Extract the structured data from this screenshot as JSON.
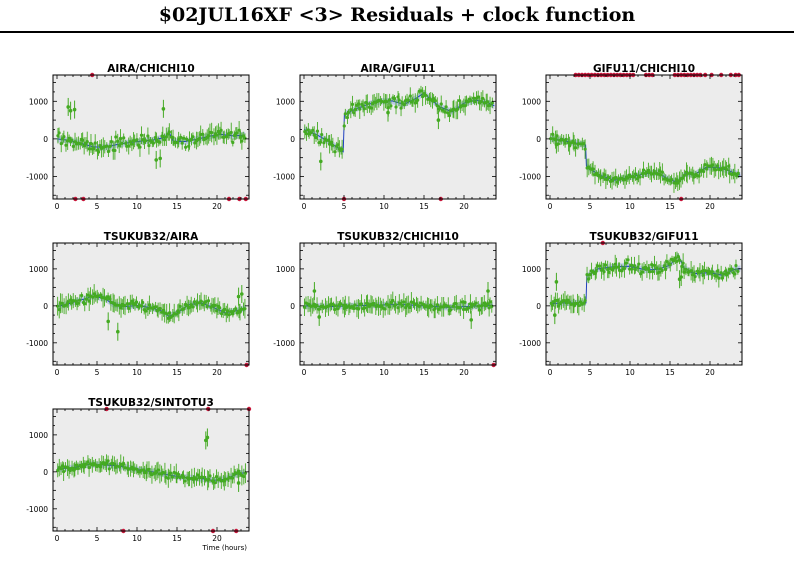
{
  "page": {
    "title": "$02JUL16XF <3> Residuals + clock function"
  },
  "colors": {
    "frame_bg": "#ececec",
    "data_points": "#44aa22",
    "flagged_points": "#c8163a",
    "clock_line": "#1f3fbf",
    "clock_band": "#b8c6e6"
  },
  "chart_data": [
    {
      "type": "scatter",
      "title": "AIRA/CHICHI10",
      "xlim": [
        -0.5,
        24
      ],
      "ylim": [
        -1600,
        1700
      ],
      "x_ticks": [
        0,
        5,
        10,
        15,
        20
      ],
      "y_ticks": [
        -1000,
        0,
        1000
      ],
      "grid": false,
      "clock_function": [
        [
          0,
          0
        ],
        [
          1.5,
          -40
        ],
        [
          3,
          -120
        ],
        [
          4.5,
          -210
        ],
        [
          6,
          -230
        ],
        [
          7.5,
          -150
        ],
        [
          9,
          -100
        ],
        [
          10.5,
          -60
        ],
        [
          12,
          -30
        ],
        [
          13.5,
          40
        ],
        [
          14,
          180
        ],
        [
          14.5,
          -60
        ],
        [
          16,
          -70
        ],
        [
          17.5,
          -10
        ],
        [
          19,
          70
        ],
        [
          20.5,
          120
        ],
        [
          22,
          80
        ],
        [
          23.5,
          100
        ]
      ],
      "scatter_amplitude": 180,
      "outliers": [
        [
          1.4,
          850
        ],
        [
          2.2,
          780
        ],
        [
          1.7,
          750
        ],
        [
          12.4,
          -560
        ],
        [
          12.9,
          -520
        ],
        [
          13.3,
          800
        ]
      ],
      "flagged_top": [
        4.4
      ],
      "flagged_bottom": [
        2.3,
        3.3,
        21.5,
        22.8,
        23.6
      ]
    },
    {
      "type": "scatter",
      "title": "AIRA/GIFU11",
      "xlim": [
        -0.5,
        24
      ],
      "ylim": [
        -1600,
        1700
      ],
      "x_ticks": [
        0,
        5,
        10,
        15,
        20
      ],
      "y_ticks": [
        -1000,
        0,
        1000
      ],
      "grid": false,
      "clock_function": [
        [
          0,
          250
        ],
        [
          1.5,
          120
        ],
        [
          3,
          -60
        ],
        [
          4.9,
          -340
        ],
        [
          5.05,
          650
        ],
        [
          6.5,
          800
        ],
        [
          8,
          920
        ],
        [
          9.5,
          1000
        ],
        [
          11,
          1010
        ],
        [
          12.5,
          920
        ],
        [
          14,
          1080
        ],
        [
          15,
          1220
        ],
        [
          16,
          1020
        ],
        [
          17,
          850
        ],
        [
          18.5,
          720
        ],
        [
          20,
          950
        ],
        [
          21.5,
          1030
        ],
        [
          23,
          960
        ],
        [
          23.8,
          880
        ]
      ],
      "scatter_amplitude": 170,
      "outliers": [
        [
          2.1,
          -600
        ],
        [
          10.5,
          700
        ],
        [
          16.8,
          500
        ]
      ],
      "flagged_top": [],
      "flagged_bottom": [
        5.0,
        17.1
      ]
    },
    {
      "type": "scatter",
      "title": "GIFU11/CHICHI10",
      "xlim": [
        -0.5,
        24
      ],
      "ylim": [
        -1600,
        1700
      ],
      "x_ticks": [
        0,
        5,
        10,
        15,
        20
      ],
      "y_ticks": [
        -1000,
        0,
        1000
      ],
      "grid": false,
      "clock_function": [
        [
          0,
          10
        ],
        [
          2,
          -60
        ],
        [
          4.45,
          -160
        ],
        [
          4.55,
          -720
        ],
        [
          6,
          -950
        ],
        [
          8,
          -1100
        ],
        [
          10,
          -1020
        ],
        [
          12,
          -920
        ],
        [
          13.5,
          -900
        ],
        [
          15,
          -1100
        ],
        [
          16,
          -1140
        ],
        [
          17,
          -920
        ],
        [
          18,
          -960
        ],
        [
          19.5,
          -760
        ],
        [
          21,
          -760
        ],
        [
          22.5,
          -860
        ],
        [
          23.8,
          -970
        ]
      ],
      "scatter_amplitude": 110,
      "outliers": [
        [
          0.8,
          -150
        ]
      ],
      "flagged_top": [
        3.2,
        3.6,
        4.0,
        4.4,
        4.8,
        5.2,
        5.6,
        6.0,
        6.4,
        6.8,
        7.2,
        7.6,
        8.0,
        8.4,
        8.8,
        9.2,
        9.6,
        10.0,
        10.4,
        12.0,
        12.4,
        12.8,
        15.6,
        16.0,
        16.4,
        16.8,
        17.2,
        17.6,
        18.0,
        18.4,
        18.8,
        19.4,
        20.2,
        21.4,
        22.6,
        23.2,
        23.6
      ],
      "flagged_bottom": [
        16.4
      ]
    },
    {
      "type": "scatter",
      "title": "TSUKUB32/AIRA",
      "xlim": [
        -0.5,
        24
      ],
      "ylim": [
        -1600,
        1700
      ],
      "x_ticks": [
        0,
        5,
        10,
        15,
        20
      ],
      "y_ticks": [
        -1000,
        0,
        1000
      ],
      "grid": false,
      "clock_function": [
        [
          0,
          -20
        ],
        [
          1.5,
          60
        ],
        [
          3,
          160
        ],
        [
          4.5,
          260
        ],
        [
          6,
          200
        ],
        [
          7,
          40
        ],
        [
          8.5,
          -20
        ],
        [
          10,
          10
        ],
        [
          11.5,
          -40
        ],
        [
          13,
          -130
        ],
        [
          14,
          -280
        ],
        [
          15,
          -190
        ],
        [
          16.5,
          30
        ],
        [
          18,
          80
        ],
        [
          19.5,
          -40
        ],
        [
          21,
          -190
        ],
        [
          22.5,
          -130
        ],
        [
          23.6,
          -60
        ]
      ],
      "scatter_amplitude": 130,
      "outliers": [
        [
          7.6,
          -700
        ],
        [
          6.4,
          -420
        ],
        [
          22.7,
          250
        ],
        [
          23.1,
          320
        ]
      ],
      "flagged_top": [],
      "flagged_bottom": [
        23.7
      ]
    },
    {
      "type": "scatter",
      "title": "TSUKUB32/CHICHI10",
      "xlim": [
        -0.5,
        24
      ],
      "ylim": [
        -1600,
        1700
      ],
      "x_ticks": [
        0,
        5,
        10,
        15,
        20
      ],
      "y_ticks": [
        -1000,
        0,
        1000
      ],
      "grid": false,
      "clock_function": [
        [
          0,
          0
        ],
        [
          3,
          -20
        ],
        [
          6,
          0
        ],
        [
          9,
          20
        ],
        [
          12,
          40
        ],
        [
          15,
          0
        ],
        [
          18,
          -40
        ],
        [
          21,
          -10
        ],
        [
          23.6,
          20
        ]
      ],
      "scatter_amplitude": 110,
      "outliers": [
        [
          1.3,
          400
        ],
        [
          20.9,
          -380
        ],
        [
          23.0,
          400
        ],
        [
          1.9,
          -300
        ]
      ],
      "flagged_top": [],
      "flagged_bottom": [
        23.7
      ]
    },
    {
      "type": "scatter",
      "title": "TSUKUB32/GIFU11",
      "xlim": [
        -0.5,
        24
      ],
      "ylim": [
        -1600,
        1700
      ],
      "x_ticks": [
        0,
        5,
        10,
        15,
        20
      ],
      "y_ticks": [
        -1000,
        0,
        1000
      ],
      "grid": false,
      "clock_function": [
        [
          0,
          60
        ],
        [
          2,
          80
        ],
        [
          4.5,
          80
        ],
        [
          4.6,
          800
        ],
        [
          6,
          1000
        ],
        [
          8,
          1060
        ],
        [
          10,
          1070
        ],
        [
          12,
          970
        ],
        [
          13.5,
          990
        ],
        [
          15,
          1100
        ],
        [
          16,
          1360
        ],
        [
          16.8,
          1020
        ],
        [
          18,
          870
        ],
        [
          20,
          900
        ],
        [
          21.5,
          830
        ],
        [
          23,
          980
        ],
        [
          23.8,
          1010
        ]
      ],
      "scatter_amplitude": 130,
      "outliers": [
        [
          0.6,
          -250
        ],
        [
          0.8,
          650
        ],
        [
          16.2,
          720
        ],
        [
          16.4,
          780
        ]
      ],
      "flagged_top": [
        6.6
      ],
      "flagged_bottom": []
    },
    {
      "type": "scatter",
      "title": "TSUKUB32/SINTOTU3",
      "xlabel": "Time (hours)",
      "xlim": [
        -0.5,
        24
      ],
      "ylim": [
        -1600,
        1700
      ],
      "x_ticks": [
        0,
        5,
        10,
        15,
        20
      ],
      "y_ticks": [
        -1000,
        0,
        1000
      ],
      "grid": false,
      "clock_function": [
        [
          0,
          80
        ],
        [
          2,
          110
        ],
        [
          4,
          200
        ],
        [
          6,
          190
        ],
        [
          8,
          150
        ],
        [
          10,
          60
        ],
        [
          12,
          0
        ],
        [
          14,
          -90
        ],
        [
          16,
          -150
        ],
        [
          18,
          -180
        ],
        [
          19.5,
          -230
        ],
        [
          21,
          -200
        ],
        [
          22.5,
          -60
        ],
        [
          23.5,
          -20
        ]
      ],
      "scatter_amplitude": 110,
      "outliers": [
        [
          18.6,
          850
        ],
        [
          18.8,
          930
        ],
        [
          22.7,
          -300
        ]
      ],
      "flagged_top": [
        6.2,
        18.9,
        24.0
      ],
      "flagged_bottom": [
        8.3,
        19.5,
        22.4
      ]
    }
  ]
}
